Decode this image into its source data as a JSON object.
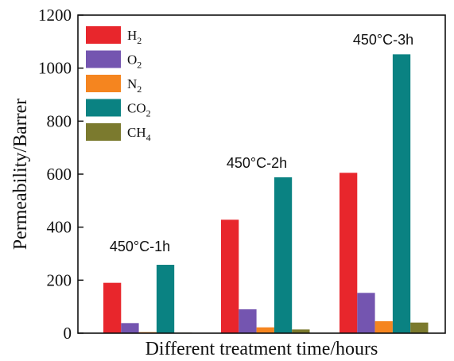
{
  "chart_data": {
    "type": "bar",
    "xlabel": "Different treatment  time/hours",
    "ylabel": "Permeability/Barrer",
    "ylim": [
      0,
      1200
    ],
    "yticks": [
      0,
      200,
      400,
      600,
      800,
      1000,
      1200
    ],
    "grid": false,
    "legend_position": "top-left",
    "groups": [
      {
        "annotation": "450°C-1h"
      },
      {
        "annotation": "450°C-2h"
      },
      {
        "annotation": "450°C-3h"
      }
    ],
    "series": [
      {
        "name": "H2",
        "label_main": "H",
        "label_sub": "2",
        "color": "#e8262c",
        "values": [
          190,
          428,
          605
        ]
      },
      {
        "name": "O2",
        "label_main": "O",
        "label_sub": "2",
        "color": "#7455b0",
        "values": [
          38,
          90,
          152
        ]
      },
      {
        "name": "N2",
        "label_main": "N",
        "label_sub": "2",
        "color": "#f5851f",
        "values": [
          4,
          22,
          45
        ]
      },
      {
        "name": "CO2",
        "label_main": "CO",
        "label_sub": "2",
        "color": "#0a8282",
        "values": [
          258,
          588,
          1052
        ]
      },
      {
        "name": "CH4",
        "label_main": "CH",
        "label_sub": "4",
        "color": "#7b7a2e",
        "values": [
          2,
          14,
          40
        ]
      }
    ]
  }
}
